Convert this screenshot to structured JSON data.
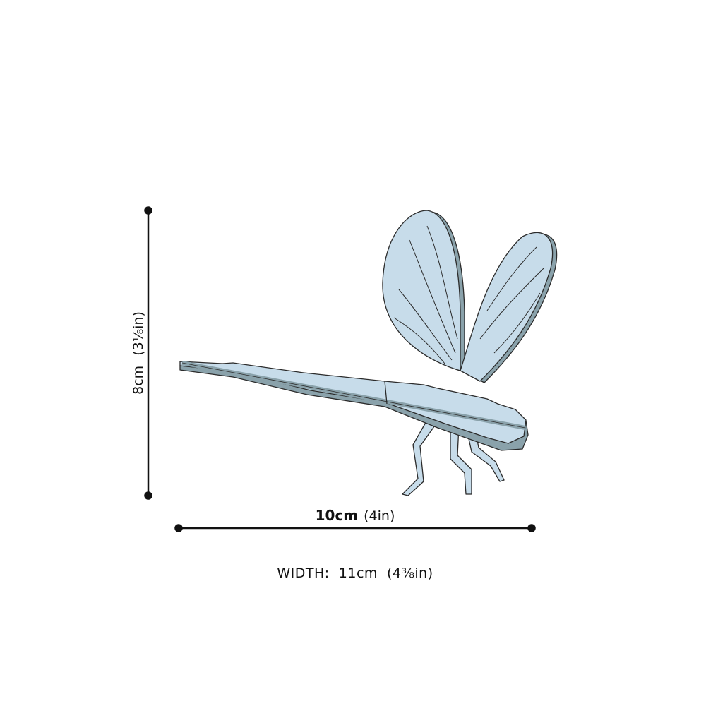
{
  "height_dimension": {
    "value": "8cm",
    "imperial": "(3⅛in)"
  },
  "length_dimension": {
    "value": "10cm",
    "imperial": "(4in)"
  },
  "width_note": "WIDTH:  11cm  (4⅜in)",
  "illustration": {
    "subject": "dragonfly-icon",
    "fill_color": "#c7dcea",
    "edge_color": "#8aa2ab",
    "outline_color": "#2b2b2b"
  },
  "dimension_line_color": "#111111"
}
